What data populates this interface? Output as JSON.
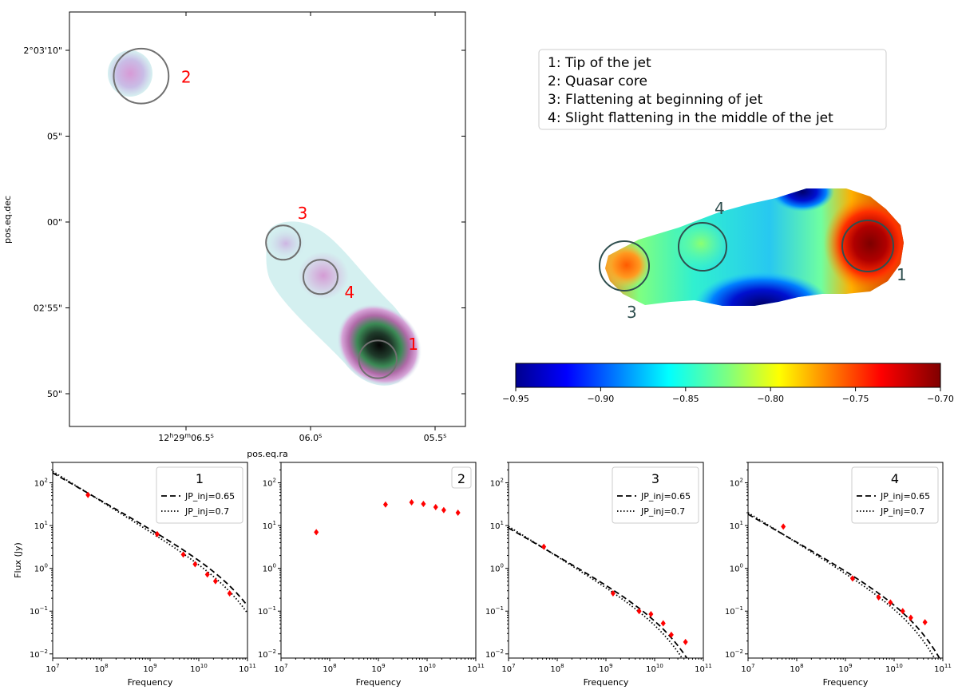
{
  "colors": {
    "region_labels_left": "#ff0000",
    "region_labels_right": "#2f4f4f",
    "region_circles": "#707070",
    "data_points": "#ff0000"
  },
  "image_panel": {
    "xlabel": "pos.eq.ra",
    "ylabel": "pos.eq.dec",
    "ra_ticks": [
      {
        "h": "12",
        "m": "29",
        "s": "06.5",
        "full": true,
        "ra_s": 6.5
      },
      {
        "h": "",
        "m": "",
        "s": "06.0",
        "full": false,
        "ra_s": 6.0
      },
      {
        "h": "",
        "m": "",
        "s": "05.5",
        "full": false,
        "ra_s": 5.5
      }
    ],
    "dec_ticks": [
      {
        "label": "2°03'10\"",
        "arcsec": 10
      },
      {
        "label": "05\"",
        "arcsec": 5
      },
      {
        "label": "00\"",
        "arcsec": 0
      },
      {
        "label": "02'55\"",
        "arcsec": -5
      },
      {
        "label": "50\"",
        "arcsec": -10
      }
    ],
    "regions": [
      {
        "id": "1",
        "ra_s": 5.73,
        "dec": -8.0,
        "r": 1.1
      },
      {
        "id": "2",
        "ra_s": 6.68,
        "dec": 8.5,
        "r": 1.6
      },
      {
        "id": "3",
        "ra_s": 6.11,
        "dec": -1.2,
        "r": 1.0
      },
      {
        "id": "4",
        "ra_s": 5.96,
        "dec": -3.2,
        "r": 1.0
      }
    ]
  },
  "legend_box": {
    "items": [
      "1: Tip of the jet",
      "2: Quasar core",
      "3: Flattening at beginning of jet",
      "4: Slight flattening in the middle of the jet"
    ]
  },
  "spectral_index_map": {
    "colorbar": {
      "min": -0.95,
      "max": -0.7,
      "ticks": [
        "−0.95",
        "−0.90",
        "−0.85",
        "−0.80",
        "−0.75",
        "−0.70"
      ],
      "colormap": "jet"
    },
    "region_labels": [
      "1",
      "3",
      "4"
    ]
  },
  "chart_data": [
    {
      "type": "scatter",
      "title": "1",
      "xlabel": "Frequency",
      "ylabel": "Flux (Jy)",
      "log_x": true,
      "log_y": true,
      "xlim": [
        10000000,
        100000000000
      ],
      "ylim": [
        0.008,
        300
      ],
      "legend": "top-right",
      "legend_entries": [
        "JP_inj=0.65",
        "JP_inj=0.7"
      ],
      "points": {
        "x": [
          53000000,
          1400000000,
          4800000000,
          8400000000,
          15000000000,
          22000000000,
          43000000000
        ],
        "y": [
          52,
          6.3,
          2.1,
          1.25,
          0.72,
          0.5,
          0.26
        ]
      },
      "model": {
        "norm": 60,
        "x0": 50000000,
        "slopes": [
          -0.65,
          -0.7
        ],
        "cutoff": 80000000000
      }
    },
    {
      "type": "scatter",
      "title": "2",
      "xlabel": "Frequency",
      "log_x": true,
      "log_y": true,
      "xlim": [
        10000000,
        100000000000
      ],
      "ylim": [
        0.008,
        300
      ],
      "legend": "top-right",
      "legend_entries": [],
      "points": {
        "x": [
          53000000,
          1400000000,
          4800000000,
          8400000000,
          15000000000,
          22000000000,
          43000000000
        ],
        "y": [
          7,
          31,
          35,
          32,
          27,
          23,
          20
        ]
      }
    },
    {
      "type": "scatter",
      "title": "3",
      "xlabel": "Frequency",
      "log_x": true,
      "log_y": true,
      "xlim": [
        10000000,
        100000000000
      ],
      "ylim": [
        0.008,
        300
      ],
      "legend": "top-right",
      "legend_entries": [
        "JP_inj=0.65",
        "JP_inj=0.7"
      ],
      "points": {
        "x": [
          53000000,
          1400000000,
          4800000000,
          8400000000,
          15000000000,
          22000000000,
          43000000000
        ],
        "y": [
          3.2,
          0.26,
          0.1,
          0.085,
          0.052,
          0.028,
          0.019
        ]
      },
      "model": {
        "norm": 3.1,
        "x0": 50000000,
        "slopes": [
          -0.65,
          -0.7
        ],
        "cutoff": 25000000000
      }
    },
    {
      "type": "scatter",
      "title": "4",
      "xlabel": "Frequency",
      "log_x": true,
      "log_y": true,
      "xlim": [
        10000000,
        100000000000
      ],
      "ylim": [
        0.008,
        300
      ],
      "legend": "top-right",
      "legend_entries": [
        "JP_inj=0.65",
        "JP_inj=0.7"
      ],
      "points": {
        "x": [
          53000000,
          1400000000,
          4800000000,
          8400000000,
          15000000000,
          22000000000,
          43000000000
        ],
        "y": [
          9.5,
          0.58,
          0.21,
          0.16,
          0.1,
          0.07,
          0.055
        ]
      },
      "model": {
        "norm": 6.5,
        "x0": 50000000,
        "slopes": [
          -0.65,
          -0.7
        ],
        "cutoff": 35000000000
      }
    }
  ]
}
